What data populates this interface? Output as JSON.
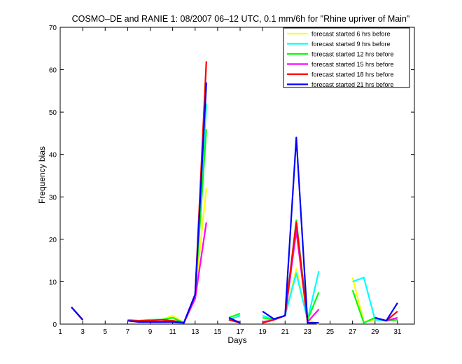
{
  "chart_data": {
    "type": "line",
    "title": "COSMO–DE and RANIE 1: 08/2007 06–12 UTC, 0.1 mm/6h for \"Rhine upriver of Main\"",
    "xlabel": "Days",
    "ylabel": "Frequency bias",
    "xlim": [
      1,
      32.5
    ],
    "ylim": [
      0,
      70
    ],
    "xticks": [
      1,
      3,
      5,
      7,
      9,
      11,
      13,
      15,
      17,
      19,
      21,
      23,
      25,
      27,
      29,
      31
    ],
    "yticks": [
      0,
      10,
      20,
      30,
      40,
      50,
      60,
      70
    ],
    "grid": false,
    "legend_position": "top-right",
    "x": [
      1,
      2,
      3,
      4,
      5,
      6,
      7,
      8,
      9,
      10,
      11,
      12,
      13,
      14,
      15,
      16,
      17,
      18,
      19,
      20,
      21,
      22,
      23,
      24,
      25,
      26,
      27,
      28,
      29,
      30,
      31
    ],
    "series": [
      {
        "name": "forecast started 6 hrs before",
        "color": "#ffff00",
        "values": [
          null,
          4,
          1,
          null,
          null,
          null,
          0.8,
          0.8,
          1,
          1,
          2,
          0.3,
          7,
          32,
          null,
          1,
          2,
          null,
          2,
          1,
          2,
          13,
          1,
          0,
          null,
          null,
          11,
          0.5,
          1,
          0.8,
          1
        ]
      },
      {
        "name": "forecast started 9 hrs before",
        "color": "#00ffff",
        "values": [
          null,
          4,
          1,
          null,
          null,
          null,
          1,
          0.8,
          1,
          1,
          1.5,
          0.3,
          7,
          52,
          null,
          1,
          2,
          null,
          2,
          1,
          2,
          12,
          1,
          12.5,
          null,
          null,
          10,
          11,
          1,
          0.8,
          1
        ]
      },
      {
        "name": "forecast started 12 hrs before",
        "color": "#00ff00",
        "values": [
          null,
          4,
          1,
          null,
          null,
          null,
          1,
          0.8,
          1,
          1,
          1.5,
          0.3,
          7,
          46,
          null,
          1.5,
          2.5,
          null,
          1.5,
          1,
          2,
          24.5,
          1,
          7.5,
          null,
          null,
          8,
          0.3,
          1.5,
          0.8,
          1
        ]
      },
      {
        "name": "forecast started 15 hrs before",
        "color": "#ff00ff",
        "values": [
          null,
          4,
          1,
          null,
          null,
          null,
          0.8,
          0.8,
          0.5,
          0.5,
          0.8,
          0.3,
          6,
          24,
          null,
          1,
          0.5,
          null,
          0.5,
          1,
          2,
          22,
          0.5,
          3.5,
          null,
          null,
          null,
          null,
          1.5,
          0.8,
          1.5
        ]
      },
      {
        "name": "forecast started 18 hrs before",
        "color": "#ff0000",
        "values": [
          null,
          4,
          1,
          null,
          null,
          null,
          0.8,
          0.8,
          0.8,
          1,
          0.8,
          0.3,
          7,
          62,
          null,
          1,
          0.3,
          null,
          0.3,
          1,
          2,
          24,
          0.3,
          0.3,
          null,
          null,
          null,
          null,
          1.5,
          0.8,
          3
        ]
      },
      {
        "name": "forecast started 21 hrs before",
        "color": "#0000ff",
        "values": [
          null,
          4,
          1,
          null,
          null,
          null,
          0.8,
          0.5,
          0.5,
          0.5,
          0.5,
          0.3,
          7,
          57,
          null,
          1.5,
          0.3,
          null,
          3,
          1.2,
          2,
          44,
          0.3,
          0.3,
          null,
          null,
          null,
          null,
          1.5,
          0.8,
          5
        ]
      }
    ]
  }
}
